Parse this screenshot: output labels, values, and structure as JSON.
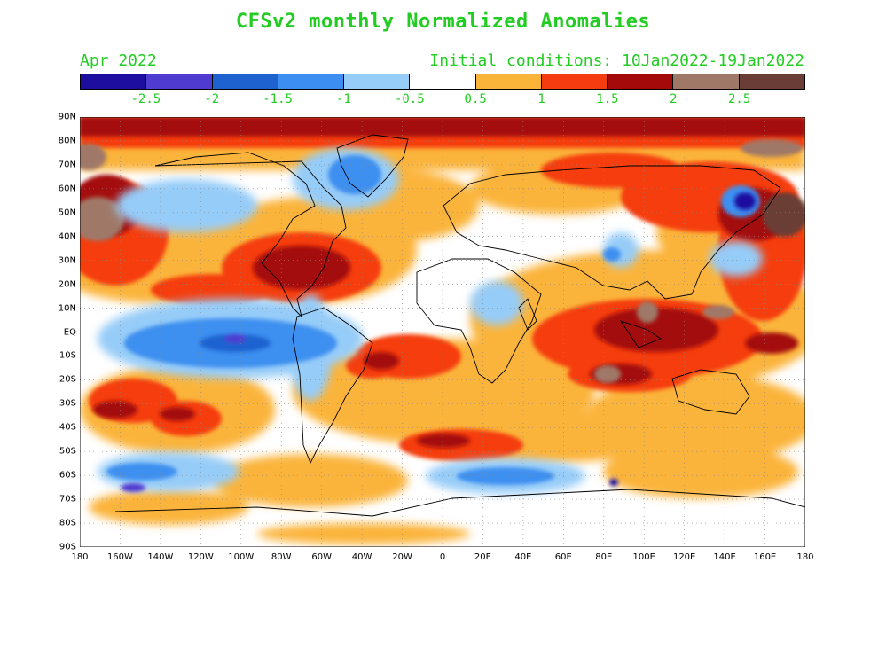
{
  "title": "CFSv2 monthly Normalized Anomalies",
  "subtitle_left": "Apr 2022",
  "subtitle_right": "Initial conditions: 10Jan2022-19Jan2022",
  "colorbar": {
    "colors": [
      "#1e0ea0",
      "#4f3bd0",
      "#1e62d0",
      "#3c8ff0",
      "#96ccf8",
      "#ffffff",
      "#fbb43a",
      "#f53c10",
      "#a40a0a",
      "#a07868",
      "#6a3e36"
    ],
    "labels": [
      "-2.5",
      "-2",
      "-1.5",
      "-1",
      "-0.5",
      "0.5",
      "1",
      "1.5",
      "2",
      "2.5"
    ]
  },
  "lat_labels": [
    "90N",
    "80N",
    "70N",
    "60N",
    "50N",
    "40N",
    "30N",
    "20N",
    "10N",
    "EQ",
    "10S",
    "20S",
    "30S",
    "40S",
    "50S",
    "60S",
    "70S",
    "80S",
    "90S"
  ],
  "lon_labels": [
    "180",
    "160W",
    "140W",
    "120W",
    "100W",
    "80W",
    "60W",
    "40W",
    "20W",
    "0",
    "20E",
    "40E",
    "60E",
    "80E",
    "100E",
    "120E",
    "140E",
    "160E",
    "180"
  ]
}
